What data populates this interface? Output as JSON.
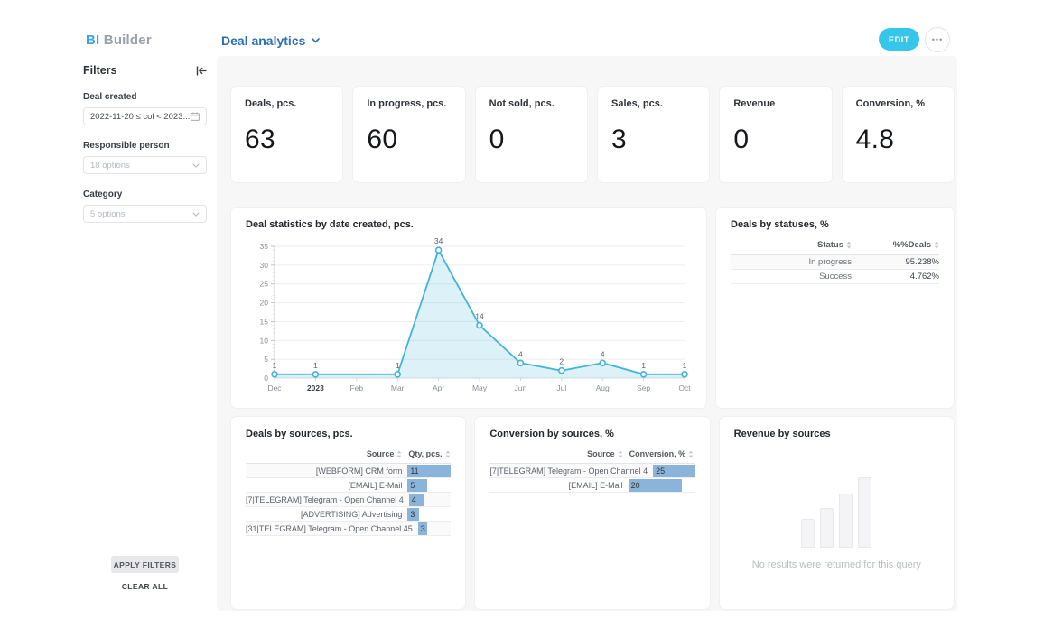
{
  "header": {
    "logo_bi": "BI",
    "logo_builder": "Builder",
    "dashboard_title": "Deal analytics",
    "edit_label": "EDIT",
    "more_label": "•••"
  },
  "sidebar": {
    "title": "Filters",
    "filters": [
      {
        "label": "Deal created",
        "value": "2022-11-20 ≤ col < 2023...",
        "type": "date"
      },
      {
        "label": "Responsible person",
        "placeholder": "18 options",
        "type": "select"
      },
      {
        "label": "Category",
        "placeholder": "5 options",
        "type": "select"
      }
    ],
    "apply_label": "APPLY FILTERS",
    "clear_label": "CLEAR ALL"
  },
  "kpis": [
    {
      "label": "Deals, pcs.",
      "value": "63"
    },
    {
      "label": "In progress, pcs.",
      "value": "60"
    },
    {
      "label": "Not sold, pcs.",
      "value": "0"
    },
    {
      "label": "Sales, pcs.",
      "value": "3"
    },
    {
      "label": "Revenue",
      "value": "0"
    },
    {
      "label": "Conversion, %",
      "value": "4.8"
    }
  ],
  "chart_data": [
    {
      "id": "deal_statistics",
      "type": "area",
      "title": "Deal statistics by date created, pcs.",
      "x": [
        "Dec",
        "2023",
        "Feb",
        "Mar",
        "Apr",
        "May",
        "Jun",
        "Jul",
        "Aug",
        "Sep",
        "Oct"
      ],
      "values": [
        1,
        1,
        null,
        1,
        34,
        14,
        4,
        2,
        4,
        1,
        1
      ],
      "bold_x_labels": [
        "2023"
      ],
      "ylim": [
        0,
        35
      ],
      "yticks": [
        0,
        5,
        10,
        15,
        20,
        25,
        30,
        35
      ],
      "grid": true,
      "line_color": "#41b5d9",
      "fill_color": "rgba(65,181,217,0.18)"
    },
    {
      "id": "deals_by_statuses",
      "type": "table",
      "title": "Deals by statuses, %",
      "columns": [
        "Status",
        "%%Deals"
      ],
      "rows": [
        {
          "label": "In progress",
          "value": "95.238%"
        },
        {
          "label": "Success",
          "value": "4.762%"
        }
      ]
    },
    {
      "id": "deals_by_sources",
      "type": "bar",
      "title": "Deals by sources, pcs.",
      "columns": [
        "Source",
        "Qty, pcs."
      ],
      "categories": [
        "[WEBFORM] CRM form",
        "[EMAIL] E-Mail",
        "[7|TELEGRAM] Telegram - Open Channel 4",
        "[ADVERTISING] Advertising",
        "[31|TELEGRAM] Telegram - Open Channel 45"
      ],
      "values": [
        11,
        5,
        4,
        3,
        3
      ],
      "max": 11,
      "bar_color": "#8ab4da"
    },
    {
      "id": "conversion_by_sources",
      "type": "bar",
      "title": "Conversion by sources, %",
      "columns": [
        "Source",
        "Conversion, %"
      ],
      "categories": [
        "[7|TELEGRAM] Telegram - Open Channel 4",
        "[EMAIL] E-Mail"
      ],
      "values": [
        25,
        20
      ],
      "max": 25,
      "bar_color": "#8ab4da"
    },
    {
      "id": "revenue_by_sources",
      "type": "empty",
      "title": "Revenue by sources",
      "empty_text": "No results were returned for this query"
    }
  ]
}
